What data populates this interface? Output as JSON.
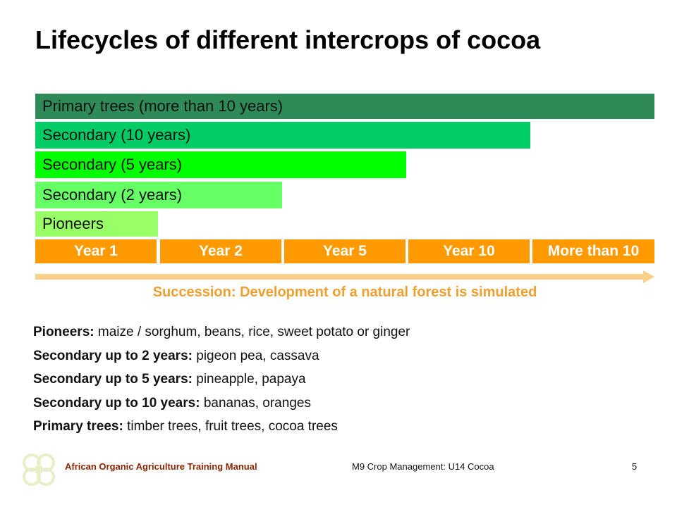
{
  "title": "Lifecycles of different intercrops of cocoa",
  "bars": [
    {
      "label": "Primary trees (more than 10 years)",
      "color": "#2e8b57"
    },
    {
      "label": "Secondary (10 years)",
      "color": "#00cc66"
    },
    {
      "label": "Secondary (5 years)",
      "color": "#00ff00"
    },
    {
      "label": "Secondary (2 years)",
      "color": "#66ff66"
    },
    {
      "label": "Pioneers",
      "color": "#99ff66"
    }
  ],
  "years": [
    "Year 1",
    "Year 2",
    "Year 5",
    "Year 10",
    "More than 10"
  ],
  "succession": "Succession: Development of a natural forest is simulated",
  "legend": [
    {
      "term": "Pioneers:",
      "desc": " maize / sorghum, beans, rice, sweet potato or ginger"
    },
    {
      "term": "Secondary up to 2 years:",
      "desc": " pigeon pea, cassava"
    },
    {
      "term": "Secondary up to 5 years:",
      "desc": " pineapple, papaya"
    },
    {
      "term": "Secondary up to 10 years:",
      "desc": " bananas, oranges"
    },
    {
      "term": "Primary trees:",
      "desc": " timber trees, fruit trees, cocoa trees"
    }
  ],
  "footer": {
    "left": "African Organic Agriculture Training Manual",
    "center": "M9 Crop Management: U14 Cocoa",
    "page": "5"
  },
  "colors": {
    "year_bg": "#ff9900",
    "arrow": "#f8d08a",
    "succession_text": "#f0a030",
    "footer_left": "#8b2500"
  }
}
